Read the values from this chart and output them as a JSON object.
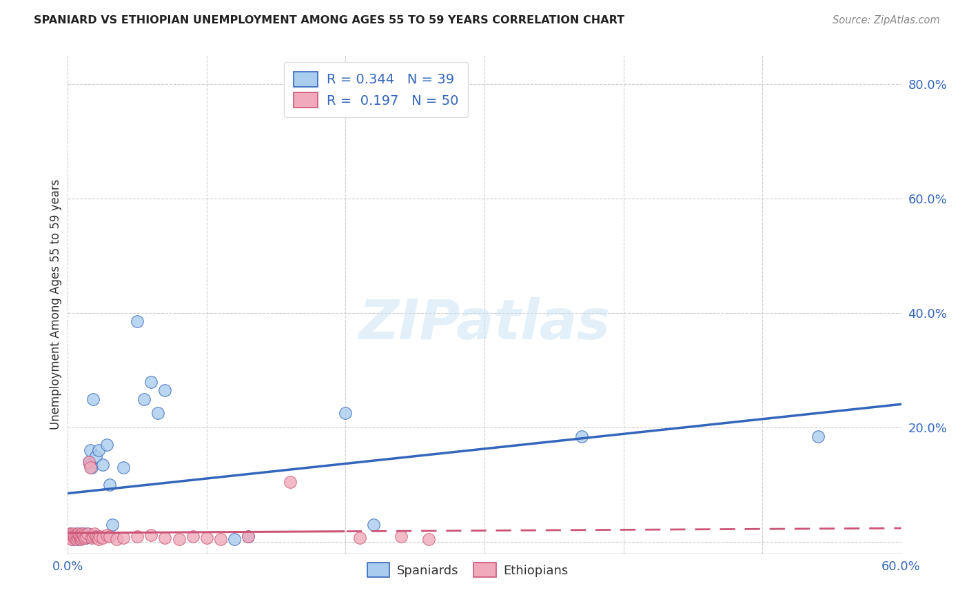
{
  "title": "SPANIARD VS ETHIOPIAN UNEMPLOYMENT AMONG AGES 55 TO 59 YEARS CORRELATION CHART",
  "source": "Source: ZipAtlas.com",
  "ylabel": "Unemployment Among Ages 55 to 59 years",
  "xlim": [
    0.0,
    0.6
  ],
  "ylim": [
    -0.02,
    0.85
  ],
  "x_ticks": [
    0.0,
    0.1,
    0.2,
    0.3,
    0.4,
    0.5,
    0.6
  ],
  "x_tick_labels": [
    "0.0%",
    "",
    "",
    "",
    "",
    "",
    "60.0%"
  ],
  "y_ticks_right": [
    0.2,
    0.4,
    0.6,
    0.8
  ],
  "y_tick_labels_right": [
    "20.0%",
    "40.0%",
    "60.0%",
    "80.0%"
  ],
  "watermark": "ZIPatlas",
  "legend_spaniards_R": "0.344",
  "legend_spaniards_N": "39",
  "legend_ethiopians_R": "0.197",
  "legend_ethiopians_N": "50",
  "spaniards_color": "#aaccee",
  "ethiopians_color": "#f0aabb",
  "spaniards_line_color": "#3366bb",
  "ethiopians_line_color": "#cc5577",
  "background_color": "#ffffff",
  "sp_x": [
    0.002,
    0.003,
    0.004,
    0.005,
    0.006,
    0.006,
    0.007,
    0.007,
    0.008,
    0.009,
    0.01,
    0.01,
    0.011,
    0.012,
    0.013,
    0.014,
    0.015,
    0.016,
    0.016,
    0.017,
    0.018,
    0.02,
    0.022,
    0.025,
    0.028,
    0.03,
    0.032,
    0.04,
    0.05,
    0.055,
    0.06,
    0.065,
    0.07,
    0.12,
    0.13,
    0.2,
    0.22,
    0.37,
    0.54
  ],
  "sp_y": [
    0.015,
    0.01,
    0.005,
    0.012,
    0.008,
    0.015,
    0.012,
    0.005,
    0.01,
    0.015,
    0.008,
    0.012,
    0.015,
    0.01,
    0.008,
    0.015,
    0.14,
    0.135,
    0.16,
    0.13,
    0.25,
    0.15,
    0.16,
    0.135,
    0.17,
    0.1,
    0.03,
    0.13,
    0.385,
    0.25,
    0.28,
    0.225,
    0.265,
    0.005,
    0.01,
    0.225,
    0.03,
    0.185,
    0.185
  ],
  "et_x": [
    0.001,
    0.002,
    0.002,
    0.003,
    0.003,
    0.004,
    0.004,
    0.005,
    0.005,
    0.006,
    0.006,
    0.007,
    0.007,
    0.008,
    0.008,
    0.009,
    0.009,
    0.01,
    0.01,
    0.011,
    0.011,
    0.012,
    0.013,
    0.014,
    0.015,
    0.016,
    0.017,
    0.018,
    0.019,
    0.02,
    0.021,
    0.022,
    0.023,
    0.025,
    0.028,
    0.03,
    0.035,
    0.04,
    0.05,
    0.06,
    0.07,
    0.08,
    0.09,
    0.1,
    0.11,
    0.13,
    0.16,
    0.21,
    0.24,
    0.26
  ],
  "et_y": [
    0.01,
    0.015,
    0.008,
    0.012,
    0.005,
    0.01,
    0.015,
    0.008,
    0.012,
    0.005,
    0.012,
    0.008,
    0.015,
    0.01,
    0.012,
    0.005,
    0.01,
    0.008,
    0.015,
    0.01,
    0.012,
    0.008,
    0.01,
    0.015,
    0.14,
    0.13,
    0.008,
    0.01,
    0.015,
    0.01,
    0.008,
    0.005,
    0.01,
    0.008,
    0.012,
    0.01,
    0.005,
    0.008,
    0.01,
    0.012,
    0.008,
    0.005,
    0.01,
    0.008,
    0.005,
    0.01,
    0.105,
    0.008,
    0.01,
    0.005
  ]
}
